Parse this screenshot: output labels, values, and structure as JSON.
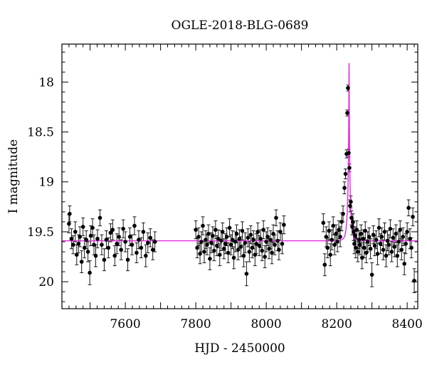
{
  "chart_data": {
    "type": "scatter",
    "title": "OGLE-2018-BLG-0689",
    "xlabel": "HJD - 2450000",
    "ylabel": "I magnitude",
    "xlim": [
      7420,
      8430
    ],
    "ylim": [
      20.27,
      17.62
    ],
    "y_inverted": true,
    "grid": false,
    "x_ticks": [
      {
        "value": 7600,
        "label": "7600"
      },
      {
        "value": 7800,
        "label": "7800"
      },
      {
        "value": 8000,
        "label": "8000"
      },
      {
        "value": 8200,
        "label": "8200"
      },
      {
        "value": 8400,
        "label": "8400"
      }
    ],
    "y_ticks": [
      {
        "value": 18,
        "label": "18"
      },
      {
        "value": 18.5,
        "label": "18.5"
      },
      {
        "value": 19,
        "label": "19"
      },
      {
        "value": 19.5,
        "label": "19.5"
      },
      {
        "value": 20,
        "label": "20"
      }
    ],
    "baseline_mag": 19.59,
    "model_color": "#e026e0",
    "point_color": "#000000",
    "series": [
      {
        "type": "scatter_with_errorbars",
        "points": [
          [
            7440,
            19.42,
            0.09
          ],
          [
            7442,
            19.32,
            0.08
          ],
          [
            7447,
            19.57,
            0.1
          ],
          [
            7452,
            19.63,
            0.09
          ],
          [
            7458,
            19.5,
            0.1
          ],
          [
            7462,
            19.73,
            0.1
          ],
          [
            7467,
            19.62,
            0.09
          ],
          [
            7471,
            19.55,
            0.1
          ],
          [
            7476,
            19.8,
            0.11
          ],
          [
            7480,
            19.45,
            0.09
          ],
          [
            7484,
            19.66,
            0.1
          ],
          [
            7489,
            19.58,
            0.09
          ],
          [
            7494,
            19.7,
            0.1
          ],
          [
            7499,
            19.91,
            0.12
          ],
          [
            7502,
            19.54,
            0.1
          ],
          [
            7507,
            19.46,
            0.09
          ],
          [
            7511,
            19.63,
            0.1
          ],
          [
            7516,
            19.74,
            0.11
          ],
          [
            7521,
            19.57,
            0.09
          ],
          [
            7528,
            19.36,
            0.08
          ],
          [
            7533,
            19.63,
            0.1
          ],
          [
            7540,
            19.78,
            0.11
          ],
          [
            7546,
            19.58,
            0.09
          ],
          [
            7552,
            19.66,
            0.1
          ],
          [
            7558,
            19.51,
            0.09
          ],
          [
            7564,
            19.48,
            0.1
          ],
          [
            7570,
            19.74,
            0.1
          ],
          [
            7576,
            19.62,
            0.1
          ],
          [
            7582,
            19.55,
            0.09
          ],
          [
            7588,
            19.68,
            0.1
          ],
          [
            7594,
            19.47,
            0.09
          ],
          [
            7600,
            19.6,
            0.1
          ],
          [
            7607,
            19.78,
            0.11
          ],
          [
            7613,
            19.55,
            0.09
          ],
          [
            7619,
            19.63,
            0.1
          ],
          [
            7626,
            19.44,
            0.09
          ],
          [
            7632,
            19.71,
            0.1
          ],
          [
            7638,
            19.58,
            0.09
          ],
          [
            7645,
            19.66,
            0.1
          ],
          [
            7651,
            19.5,
            0.09
          ],
          [
            7658,
            19.74,
            0.11
          ],
          [
            7664,
            19.61,
            0.1
          ],
          [
            7671,
            19.56,
            0.09
          ],
          [
            7678,
            19.68,
            0.1
          ],
          [
            7684,
            19.6,
            0.1
          ],
          [
            7800,
            19.48,
            0.09
          ],
          [
            7804,
            19.66,
            0.1
          ],
          [
            7808,
            19.55,
            0.09
          ],
          [
            7812,
            19.72,
            0.1
          ],
          [
            7816,
            19.6,
            0.1
          ],
          [
            7820,
            19.44,
            0.09
          ],
          [
            7824,
            19.7,
            0.11
          ],
          [
            7828,
            19.58,
            0.09
          ],
          [
            7832,
            19.63,
            0.1
          ],
          [
            7836,
            19.52,
            0.09
          ],
          [
            7840,
            19.77,
            0.11
          ],
          [
            7844,
            19.61,
            0.1
          ],
          [
            7848,
            19.54,
            0.09
          ],
          [
            7852,
            19.69,
            0.1
          ],
          [
            7856,
            19.48,
            0.09
          ],
          [
            7860,
            19.64,
            0.1
          ],
          [
            7864,
            19.57,
            0.09
          ],
          [
            7868,
            19.73,
            0.11
          ],
          [
            7872,
            19.59,
            0.1
          ],
          [
            7876,
            19.5,
            0.09
          ],
          [
            7880,
            19.67,
            0.1
          ],
          [
            7884,
            19.62,
            0.1
          ],
          [
            7888,
            19.55,
            0.09
          ],
          [
            7892,
            19.71,
            0.1
          ],
          [
            7896,
            19.46,
            0.09
          ],
          [
            7900,
            19.63,
            0.1
          ],
          [
            7904,
            19.58,
            0.09
          ],
          [
            7908,
            19.76,
            0.11
          ],
          [
            7912,
            19.6,
            0.1
          ],
          [
            7916,
            19.52,
            0.09
          ],
          [
            7920,
            19.68,
            0.1
          ],
          [
            7924,
            19.57,
            0.09
          ],
          [
            7928,
            19.65,
            0.1
          ],
          [
            7932,
            19.49,
            0.09
          ],
          [
            7936,
            19.74,
            0.11
          ],
          [
            7940,
            19.61,
            0.1
          ],
          [
            7944,
            19.92,
            0.12
          ],
          [
            7948,
            19.56,
            0.09
          ],
          [
            7952,
            19.7,
            0.1
          ],
          [
            7956,
            19.53,
            0.09
          ],
          [
            7960,
            19.66,
            0.1
          ],
          [
            7964,
            19.58,
            0.09
          ],
          [
            7968,
            19.73,
            0.11
          ],
          [
            7972,
            19.62,
            0.1
          ],
          [
            7976,
            19.5,
            0.09
          ],
          [
            7980,
            19.64,
            0.1
          ],
          [
            7984,
            19.57,
            0.09
          ],
          [
            7988,
            19.69,
            0.1
          ],
          [
            7992,
            19.48,
            0.09
          ],
          [
            7996,
            19.75,
            0.11
          ],
          [
            8000,
            19.6,
            0.1
          ],
          [
            8004,
            19.55,
            0.09
          ],
          [
            8008,
            19.67,
            0.1
          ],
          [
            8012,
            19.58,
            0.09
          ],
          [
            8016,
            19.71,
            0.11
          ],
          [
            8020,
            19.52,
            0.09
          ],
          [
            8024,
            19.63,
            0.1
          ],
          [
            8028,
            19.36,
            0.08
          ],
          [
            8032,
            19.59,
            0.1
          ],
          [
            8036,
            19.68,
            0.1
          ],
          [
            8040,
            19.5,
            0.09
          ],
          [
            8045,
            19.62,
            0.1
          ],
          [
            8050,
            19.43,
            0.09
          ],
          [
            8162,
            19.41,
            0.09
          ],
          [
            8166,
            19.83,
            0.11
          ],
          [
            8170,
            19.55,
            0.1
          ],
          [
            8174,
            19.66,
            0.1
          ],
          [
            8178,
            19.49,
            0.09
          ],
          [
            8182,
            19.73,
            0.11
          ],
          [
            8186,
            19.58,
            0.1
          ],
          [
            8190,
            19.44,
            0.09
          ],
          [
            8194,
            19.63,
            0.1
          ],
          [
            8198,
            19.52,
            0.09
          ],
          [
            8202,
            19.6,
            0.1
          ],
          [
            8206,
            19.48,
            0.09
          ],
          [
            8210,
            19.55,
            0.1
          ],
          [
            8214,
            19.4,
            0.09
          ],
          [
            8218,
            19.32,
            0.08
          ],
          [
            8222,
            19.06,
            0.06
          ],
          [
            8225,
            18.92,
            0.05
          ],
          [
            8228,
            18.72,
            0.04
          ],
          [
            8230,
            18.31,
            0.03
          ],
          [
            8232,
            18.06,
            0.03
          ],
          [
            8234,
            18.71,
            0.04
          ],
          [
            8236,
            18.86,
            0.04
          ],
          [
            8238,
            19.24,
            0.06
          ],
          [
            8240,
            19.2,
            0.06
          ],
          [
            8242,
            19.36,
            0.07
          ],
          [
            8244,
            19.45,
            0.08
          ],
          [
            8246,
            19.4,
            0.08
          ],
          [
            8248,
            19.5,
            0.09
          ],
          [
            8250,
            19.62,
            0.1
          ],
          [
            8252,
            19.54,
            0.09
          ],
          [
            8254,
            19.66,
            0.1
          ],
          [
            8257,
            19.48,
            0.09
          ],
          [
            8260,
            19.7,
            0.1
          ],
          [
            8263,
            19.58,
            0.09
          ],
          [
            8266,
            19.63,
            0.1
          ],
          [
            8269,
            19.52,
            0.09
          ],
          [
            8272,
            19.76,
            0.11
          ],
          [
            8275,
            19.57,
            0.09
          ],
          [
            8278,
            19.66,
            0.1
          ],
          [
            8281,
            19.49,
            0.09
          ],
          [
            8284,
            19.71,
            0.1
          ],
          [
            8288,
            19.6,
            0.1
          ],
          [
            8292,
            19.55,
            0.09
          ],
          [
            8296,
            19.67,
            0.1
          ],
          [
            8300,
            19.93,
            0.12
          ],
          [
            8304,
            19.53,
            0.09
          ],
          [
            8308,
            19.64,
            0.1
          ],
          [
            8312,
            19.58,
            0.09
          ],
          [
            8316,
            19.72,
            0.11
          ],
          [
            8320,
            19.46,
            0.09
          ],
          [
            8324,
            19.62,
            0.1
          ],
          [
            8328,
            19.55,
            0.09
          ],
          [
            8332,
            19.68,
            0.1
          ],
          [
            8336,
            19.5,
            0.09
          ],
          [
            8340,
            19.74,
            0.11
          ],
          [
            8344,
            19.59,
            0.1
          ],
          [
            8348,
            19.63,
            0.1
          ],
          [
            8352,
            19.47,
            0.09
          ],
          [
            8356,
            19.7,
            0.1
          ],
          [
            8360,
            19.56,
            0.09
          ],
          [
            8364,
            19.65,
            0.1
          ],
          [
            8368,
            19.52,
            0.09
          ],
          [
            8372,
            19.74,
            0.11
          ],
          [
            8376,
            19.6,
            0.1
          ],
          [
            8380,
            19.48,
            0.09
          ],
          [
            8384,
            19.68,
            0.1
          ],
          [
            8388,
            19.55,
            0.09
          ],
          [
            8392,
            19.82,
            0.11
          ],
          [
            8396,
            19.62,
            0.1
          ],
          [
            8400,
            19.5,
            0.09
          ],
          [
            8404,
            19.26,
            0.08
          ],
          [
            8408,
            19.57,
            0.1
          ],
          [
            8412,
            19.66,
            0.1
          ],
          [
            8416,
            19.35,
            0.09
          ],
          [
            8420,
            19.99,
            0.12
          ]
        ]
      },
      {
        "type": "model_line",
        "peak_t": 8235,
        "peak_mag": 17.81,
        "tE": 7
      }
    ]
  }
}
